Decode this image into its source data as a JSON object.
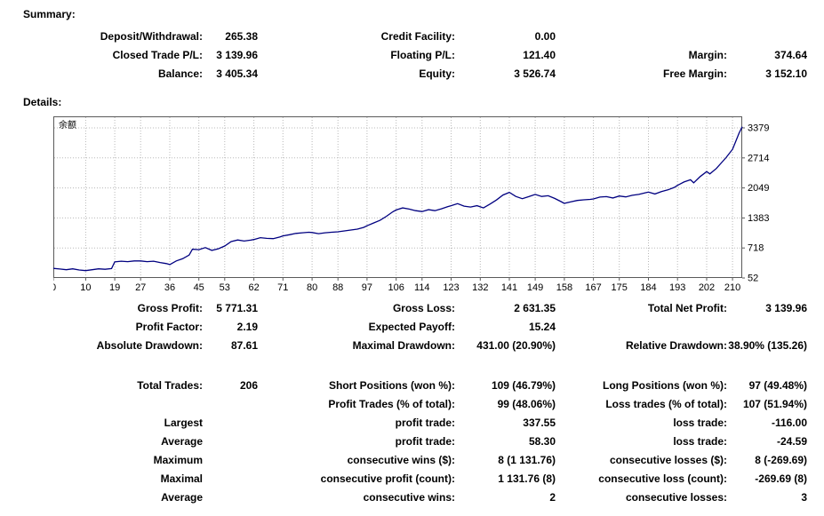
{
  "summary": {
    "heading": "Summary:",
    "rows": [
      {
        "l1": "Deposit/Withdrawal:",
        "v1": "265.38",
        "l2": "Credit Facility:",
        "v2": "0.00",
        "l3": "",
        "v3": ""
      },
      {
        "l1": "Closed Trade P/L:",
        "v1": "3 139.96",
        "l2": "Floating P/L:",
        "v2": "121.40",
        "l3": "Margin:",
        "v3": "374.64"
      },
      {
        "l1": "Balance:",
        "v1": "3 405.34",
        "l2": "Equity:",
        "v2": "3 526.74",
        "l3": "Free Margin:",
        "v3": "3 152.10"
      }
    ]
  },
  "details": {
    "heading": "Details:",
    "rows": [
      {
        "l1": "Gross Profit:",
        "v1": "5 771.31",
        "l2": "Gross Loss:",
        "v2": "2 631.35",
        "l3": "Total Net Profit:",
        "v3": "3 139.96"
      },
      {
        "l1": "Profit Factor:",
        "v1": "2.19",
        "l2": "Expected Payoff:",
        "v2": "15.24",
        "l3": "",
        "v3": ""
      },
      {
        "l1": "Absolute Drawdown:",
        "v1": "87.61",
        "l2": "Maximal Drawdown:",
        "v2": "431.00 (20.90%)",
        "l3": "Relative Drawdown:",
        "v3": "38.90% (135.26)"
      },
      {
        "spacer": true
      },
      {
        "l1": "Total Trades:",
        "v1": "206",
        "l2": "Short Positions (won %):",
        "v2": "109 (46.79%)",
        "l3": "Long Positions (won %):",
        "v3": "97 (49.48%)"
      },
      {
        "l1": "",
        "v1": "",
        "l2": "Profit Trades (% of total):",
        "v2": "99 (48.06%)",
        "l3": "Loss trades (% of total):",
        "v3": "107 (51.94%)"
      },
      {
        "l1": "Largest",
        "v1": "",
        "l2": "profit trade:",
        "v2": "337.55",
        "l3": "loss trade:",
        "v3": "-116.00"
      },
      {
        "l1": "Average",
        "v1": "",
        "l2": "profit trade:",
        "v2": "58.30",
        "l3": "loss trade:",
        "v3": "-24.59"
      },
      {
        "l1": "Maximum",
        "v1": "",
        "l2": "consecutive wins ($):",
        "v2": "8 (1 131.76)",
        "l3": "consecutive losses ($):",
        "v3": "8 (-269.69)"
      },
      {
        "l1": "Maximal",
        "v1": "",
        "l2": "consecutive profit (count):",
        "v2": "1 131.76 (8)",
        "l3": "consecutive loss (count):",
        "v3": "-269.69 (8)"
      },
      {
        "l1": "Average",
        "v1": "",
        "l2": "consecutive wins:",
        "v2": "2",
        "l3": "consecutive losses:",
        "v3": "3"
      }
    ]
  },
  "chart_data": {
    "type": "line",
    "title": "余额",
    "xlabel": "",
    "ylabel": "",
    "x_ticks": [
      0,
      10,
      19,
      27,
      36,
      45,
      53,
      62,
      71,
      80,
      88,
      97,
      106,
      114,
      123,
      132,
      141,
      149,
      158,
      167,
      175,
      184,
      193,
      202,
      210
    ],
    "y_ticks": [
      52,
      718,
      1383,
      2049,
      2714,
      3379
    ],
    "xlim": [
      0,
      213
    ],
    "ylim": [
      52,
      3379
    ],
    "grid": true,
    "legend_position": "top-left-inside",
    "line_color": "#000080",
    "points": [
      [
        0,
        265
      ],
      [
        2,
        250
      ],
      [
        4,
        235
      ],
      [
        6,
        255
      ],
      [
        8,
        230
      ],
      [
        10,
        215
      ],
      [
        12,
        235
      ],
      [
        14,
        255
      ],
      [
        16,
        245
      ],
      [
        18,
        260
      ],
      [
        19,
        410
      ],
      [
        21,
        425
      ],
      [
        23,
        415
      ],
      [
        25,
        430
      ],
      [
        27,
        430
      ],
      [
        29,
        415
      ],
      [
        31,
        425
      ],
      [
        33,
        395
      ],
      [
        35,
        370
      ],
      [
        36,
        350
      ],
      [
        38,
        430
      ],
      [
        40,
        480
      ],
      [
        42,
        560
      ],
      [
        43,
        690
      ],
      [
        45,
        680
      ],
      [
        47,
        725
      ],
      [
        49,
        665
      ],
      [
        51,
        700
      ],
      [
        53,
        760
      ],
      [
        55,
        860
      ],
      [
        57,
        895
      ],
      [
        59,
        870
      ],
      [
        61,
        890
      ],
      [
        62,
        905
      ],
      [
        64,
        945
      ],
      [
        66,
        930
      ],
      [
        68,
        925
      ],
      [
        70,
        960
      ],
      [
        71,
        985
      ],
      [
        73,
        1010
      ],
      [
        75,
        1040
      ],
      [
        77,
        1055
      ],
      [
        79,
        1065
      ],
      [
        80,
        1060
      ],
      [
        82,
        1035
      ],
      [
        84,
        1055
      ],
      [
        86,
        1065
      ],
      [
        88,
        1075
      ],
      [
        90,
        1095
      ],
      [
        92,
        1115
      ],
      [
        94,
        1135
      ],
      [
        96,
        1175
      ],
      [
        97,
        1210
      ],
      [
        99,
        1270
      ],
      [
        101,
        1330
      ],
      [
        103,
        1420
      ],
      [
        105,
        1520
      ],
      [
        106,
        1560
      ],
      [
        108,
        1605
      ],
      [
        110,
        1580
      ],
      [
        112,
        1545
      ],
      [
        114,
        1525
      ],
      [
        116,
        1565
      ],
      [
        118,
        1545
      ],
      [
        120,
        1585
      ],
      [
        122,
        1635
      ],
      [
        123,
        1655
      ],
      [
        125,
        1700
      ],
      [
        127,
        1645
      ],
      [
        129,
        1625
      ],
      [
        131,
        1655
      ],
      [
        133,
        1605
      ],
      [
        135,
        1690
      ],
      [
        137,
        1780
      ],
      [
        139,
        1890
      ],
      [
        141,
        1950
      ],
      [
        143,
        1860
      ],
      [
        145,
        1810
      ],
      [
        147,
        1855
      ],
      [
        149,
        1905
      ],
      [
        151,
        1860
      ],
      [
        153,
        1875
      ],
      [
        155,
        1815
      ],
      [
        157,
        1745
      ],
      [
        158,
        1705
      ],
      [
        160,
        1740
      ],
      [
        162,
        1770
      ],
      [
        164,
        1785
      ],
      [
        166,
        1795
      ],
      [
        167,
        1805
      ],
      [
        169,
        1845
      ],
      [
        171,
        1855
      ],
      [
        173,
        1825
      ],
      [
        175,
        1870
      ],
      [
        177,
        1850
      ],
      [
        179,
        1885
      ],
      [
        181,
        1905
      ],
      [
        183,
        1940
      ],
      [
        184,
        1955
      ],
      [
        186,
        1915
      ],
      [
        188,
        1965
      ],
      [
        190,
        2005
      ],
      [
        192,
        2060
      ],
      [
        193,
        2105
      ],
      [
        195,
        2180
      ],
      [
        197,
        2230
      ],
      [
        198,
        2160
      ],
      [
        200,
        2300
      ],
      [
        202,
        2410
      ],
      [
        203,
        2360
      ],
      [
        205,
        2480
      ],
      [
        207,
        2640
      ],
      [
        208,
        2720
      ],
      [
        210,
        2905
      ],
      [
        211,
        3080
      ],
      [
        212,
        3260
      ],
      [
        213,
        3405
      ]
    ]
  }
}
